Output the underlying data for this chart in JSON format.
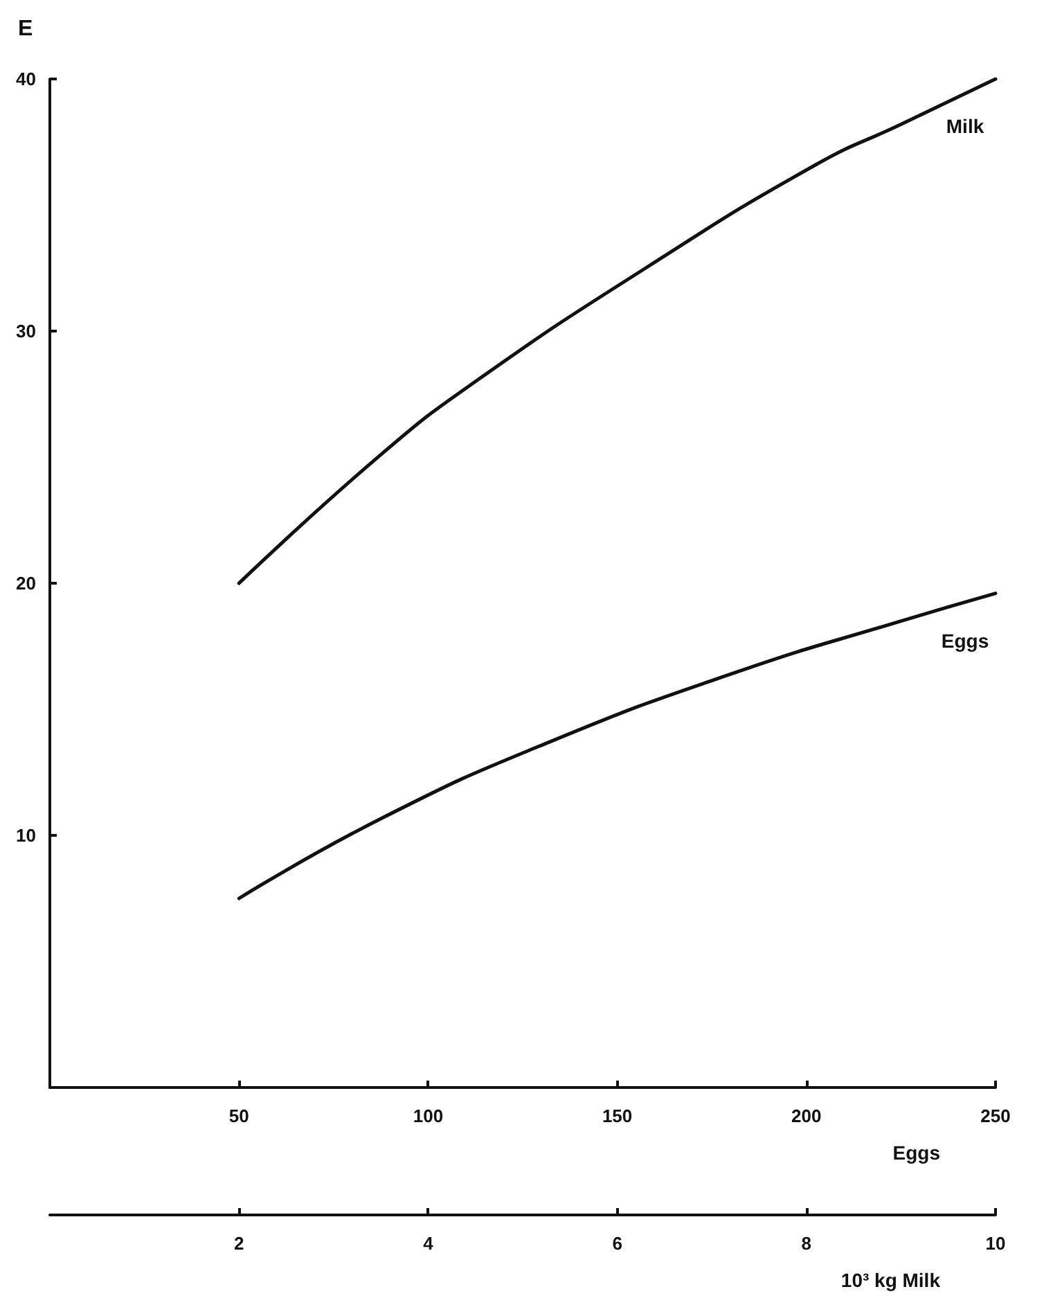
{
  "chart_data": {
    "type": "line",
    "title": "E",
    "xlabel": "Eggs",
    "x2label": "10³ kg Milk",
    "xlim": [
      0,
      250
    ],
    "xticks": [
      50,
      100,
      150,
      200,
      250
    ],
    "x2lim": [
      0,
      10
    ],
    "x2ticks": [
      2,
      4,
      6,
      8,
      10
    ],
    "ylim": [
      0,
      40
    ],
    "yticks": [
      10,
      20,
      30,
      40
    ],
    "marker": "none",
    "line_style": "solid",
    "series": [
      {
        "name": "Milk",
        "color": "#111111",
        "axis": "x2",
        "x": [
          2,
          3.5,
          4.5,
          6.3,
          8.1,
          9,
          10
        ],
        "values": [
          20,
          25.1,
          28,
          32.5,
          36.6,
          38.2,
          40
        ]
      },
      {
        "name": "Eggs",
        "color": "#111111",
        "x": [
          50,
          88,
          132,
          182,
          225,
          250
        ],
        "values": [
          7.5,
          10.7,
          13.7,
          16.5,
          18.5,
          19.6
        ]
      }
    ]
  }
}
